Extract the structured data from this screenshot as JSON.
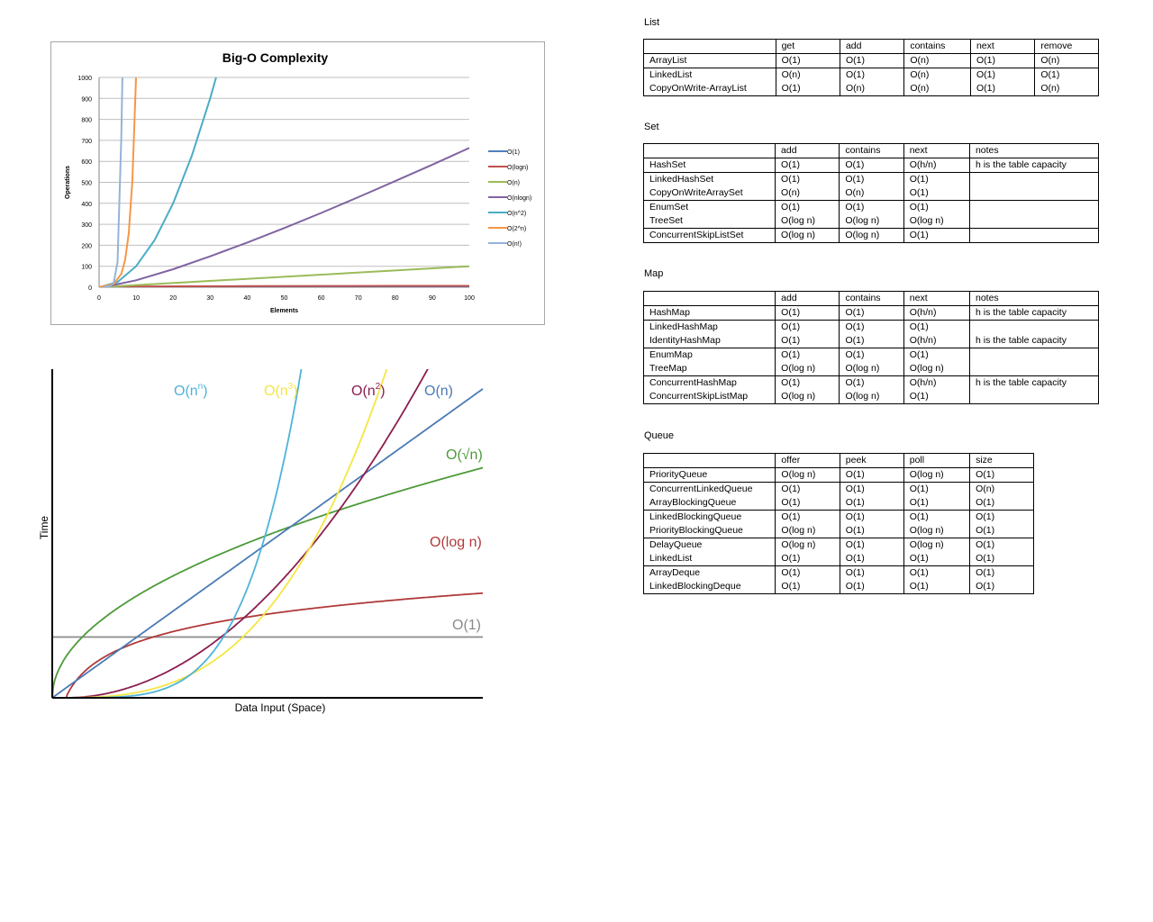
{
  "chart_data": [
    {
      "type": "line",
      "title": "Big-O Complexity",
      "xlabel": "Elements",
      "ylabel": "Operations",
      "xlim": [
        0,
        100
      ],
      "ylim": [
        0,
        1000
      ],
      "xticks": [
        0,
        10,
        20,
        30,
        40,
        50,
        60,
        70,
        80,
        90,
        100
      ],
      "yticks": [
        0,
        100,
        200,
        300,
        400,
        500,
        600,
        700,
        800,
        900,
        1000
      ],
      "grid": true,
      "legend": "right",
      "series": [
        {
          "name": "O(1)",
          "color": "#4f81bd",
          "x": [
            0,
            100
          ],
          "y": [
            1,
            1
          ]
        },
        {
          "name": "O(logn)",
          "color": "#c0504d",
          "x": [
            1,
            10,
            20,
            40,
            60,
            80,
            100
          ],
          "y": [
            0,
            3.3,
            4.3,
            5.3,
            5.9,
            6.3,
            6.6
          ]
        },
        {
          "name": "O(n)",
          "color": "#9bbb59",
          "x": [
            0,
            100
          ],
          "y": [
            0,
            100
          ]
        },
        {
          "name": "O(nlogn)",
          "color": "#8064a2",
          "x": [
            1,
            10,
            20,
            30,
            40,
            50,
            60,
            70,
            80,
            90,
            100
          ],
          "y": [
            0,
            33,
            86,
            147,
            213,
            282,
            354,
            429,
            506,
            584,
            664
          ]
        },
        {
          "name": "O(n^2)",
          "color": "#4bacc6",
          "x": [
            0,
            5,
            10,
            15,
            20,
            25,
            30,
            31.6
          ],
          "y": [
            0,
            25,
            100,
            225,
            400,
            625,
            900,
            1000
          ]
        },
        {
          "name": "O(2^n)",
          "color": "#f79646",
          "x": [
            0,
            4,
            6,
            7,
            8,
            9,
            9.97
          ],
          "y": [
            1,
            16,
            64,
            128,
            256,
            512,
            1000
          ]
        },
        {
          "name": "O(n!)",
          "color": "#95b3d7",
          "x": [
            1,
            3,
            4,
            5,
            6,
            6.3
          ],
          "y": [
            1,
            6,
            24,
            120,
            720,
            1000
          ]
        }
      ]
    },
    {
      "type": "line",
      "xlabel": "Data Input (Space)",
      "ylabel": "Time",
      "series": [
        {
          "name": "O(n^n)",
          "label_main": "O(n",
          "label_sup": "n",
          "label_end": ")",
          "color": "#4fb3d9"
        },
        {
          "name": "O(n^3)",
          "label_main": "O(n",
          "label_sup": "3",
          "label_end": ")",
          "color": "#f5e642"
        },
        {
          "name": "O(n^2)",
          "label_main": "O(n",
          "label_sup": "2",
          "label_end": ")",
          "color": "#8b1e4f"
        },
        {
          "name": "O(n)",
          "label_main": "O(n)",
          "label_sup": "",
          "label_end": "",
          "color": "#4a7ab5"
        },
        {
          "name": "O(√n)",
          "label_main": "O(√n)",
          "label_sup": "",
          "label_end": "",
          "color": "#4d9a3a"
        },
        {
          "name": "O(log n)",
          "label_main": "O(log n)",
          "label_sup": "",
          "label_end": "",
          "color": "#b03a3a"
        },
        {
          "name": "O(1)",
          "label_main": "O(1)",
          "label_sup": "",
          "label_end": "",
          "color": "#8a8a8a"
        }
      ]
    }
  ],
  "tables": {
    "list": {
      "title": "List",
      "headers": [
        "",
        "get",
        "add",
        "contains",
        "next",
        "remove"
      ],
      "rows": [
        [
          "ArrayList",
          "O(1)",
          "O(1)",
          "O(n)",
          "O(1)",
          "O(n)"
        ],
        [
          "LinkedList",
          "O(n)",
          "O(1)",
          "O(n)",
          "O(1)",
          "O(1)"
        ],
        [
          "CopyOnWrite-ArrayList",
          "O(1)",
          "O(n)",
          "O(n)",
          "O(1)",
          "O(n)"
        ]
      ]
    },
    "set": {
      "title": "Set",
      "headers": [
        "",
        "add",
        "contains",
        "next",
        "notes"
      ],
      "rows": [
        [
          "HashSet",
          "O(1)",
          "O(1)",
          "O(h/n)",
          "h is the table capacity"
        ],
        [
          "LinkedHashSet",
          "O(1)",
          "O(1)",
          "O(1)",
          ""
        ],
        [
          "CopyOnWriteArraySet",
          "O(n)",
          "O(n)",
          "O(1)",
          ""
        ],
        [
          "EnumSet",
          "O(1)",
          "O(1)",
          "O(1)",
          ""
        ],
        [
          "TreeSet",
          "O(log n)",
          "O(log n)",
          "O(log n)",
          ""
        ],
        [
          "ConcurrentSkipListSet",
          "O(log n)",
          "O(log n)",
          "O(1)",
          ""
        ]
      ]
    },
    "map": {
      "title": "Map",
      "headers": [
        "",
        "add",
        "contains",
        "next",
        "notes"
      ],
      "rows": [
        [
          "HashMap",
          "O(1)",
          "O(1)",
          "O(h/n)",
          "h is the table capacity"
        ],
        [
          "LinkedHashMap",
          "O(1)",
          "O(1)",
          "O(1)",
          ""
        ],
        [
          "IdentityHashMap",
          "O(1)",
          "O(1)",
          "O(h/n)",
          "h is the table capacity"
        ],
        [
          "EnumMap",
          "O(1)",
          "O(1)",
          "O(1)",
          ""
        ],
        [
          "TreeMap",
          "O(log n)",
          "O(log n)",
          "O(log n)",
          ""
        ],
        [
          "ConcurrentHashMap",
          "O(1)",
          "O(1)",
          "O(h/n)",
          "h is the table capacity"
        ],
        [
          "ConcurrentSkipListMap",
          "O(log n)",
          "O(log n)",
          "O(1)",
          ""
        ]
      ]
    },
    "queue": {
      "title": "Queue",
      "headers": [
        "",
        "offer",
        "peek",
        "poll",
        "size"
      ],
      "rows": [
        [
          "PriorityQueue",
          "O(log n)",
          "O(1)",
          "O(log n)",
          "O(1)"
        ],
        [
          "ConcurrentLinkedQueue",
          "O(1)",
          "O(1)",
          "O(1)",
          "O(n)"
        ],
        [
          "ArrayBlockingQueue",
          "O(1)",
          "O(1)",
          "O(1)",
          "O(1)"
        ],
        [
          "LinkedBlockingQueue",
          "O(1)",
          "O(1)",
          "O(1)",
          "O(1)"
        ],
        [
          "PriorityBlockingQueue",
          "O(log n)",
          "O(1)",
          "O(log n)",
          "O(1)"
        ],
        [
          "DelayQueue",
          "O(log n)",
          "O(1)",
          "O(log n)",
          "O(1)"
        ],
        [
          "LinkedList",
          "O(1)",
          "O(1)",
          "O(1)",
          "O(1)"
        ],
        [
          "ArrayDeque",
          "O(1)",
          "O(1)",
          "O(1)",
          "O(1)"
        ],
        [
          "LinkedBlockingDeque",
          "O(1)",
          "O(1)",
          "O(1)",
          "O(1)"
        ]
      ]
    }
  }
}
